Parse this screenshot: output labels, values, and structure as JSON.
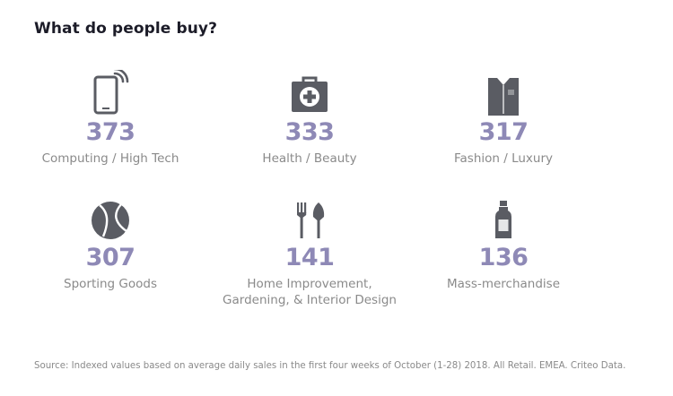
{
  "title": "What do people buy?",
  "colors": {
    "value": "#8e89b6",
    "icon": "#5a5c63",
    "label": "#8a8a8a",
    "title": "#1c1c28"
  },
  "categories": [
    {
      "icon": "smartphone-icon",
      "value": "373",
      "label_lines": [
        "Computing / High Tech"
      ]
    },
    {
      "icon": "first-aid-kit-icon",
      "value": "333",
      "label_lines": [
        "Health / Beauty"
      ]
    },
    {
      "icon": "shirt-icon",
      "value": "317",
      "label_lines": [
        "Fashion / Luxury"
      ]
    },
    {
      "icon": "ball-icon",
      "value": "307",
      "label_lines": [
        "Sporting Goods"
      ]
    },
    {
      "icon": "fork-and-trowel-icon",
      "value": "141",
      "label_lines": [
        "Home Improvement,",
        "Gardening, & Interior Design"
      ]
    },
    {
      "icon": "bottle-icon",
      "value": "136",
      "label_lines": [
        "Mass-merchandise"
      ]
    }
  ],
  "source": "Source: Indexed values based on average daily sales in the first four weeks of October (1-28) 2018. All Retail. EMEA. Criteo Data."
}
